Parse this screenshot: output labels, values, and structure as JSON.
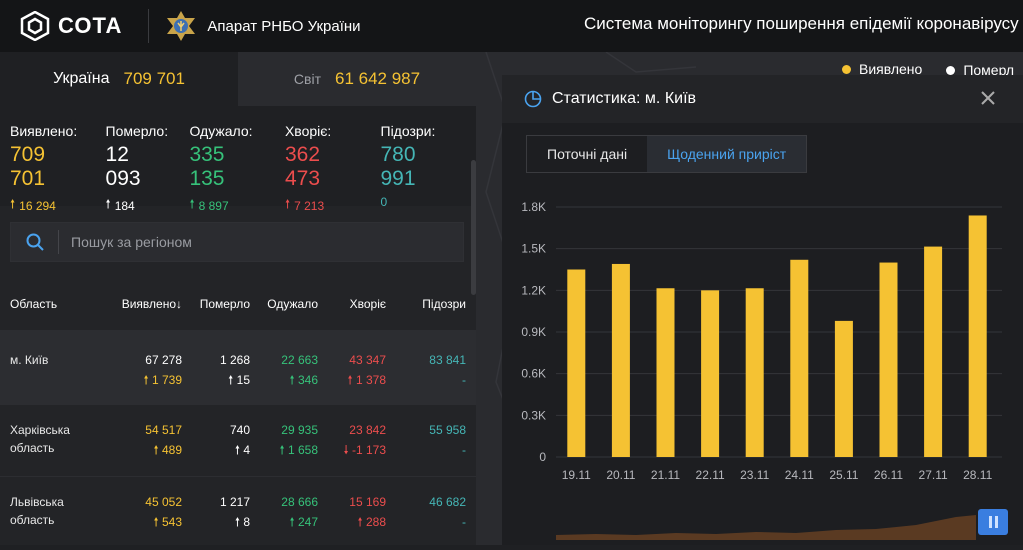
{
  "header": {
    "logo_text": "СОТА",
    "org_label": "Апарат РНБО України",
    "system_title": "Система моніторингу поширення епідемії коронавірусу"
  },
  "tabs": [
    {
      "label": "Україна",
      "value": "709 701"
    },
    {
      "label": "Світ",
      "value": "61 642 987"
    }
  ],
  "stats": [
    {
      "label": "Виявлено:",
      "value": "709 701",
      "delta": "16 294",
      "color": "yellow",
      "arrow": "up"
    },
    {
      "label": "Померло:",
      "value": "12 093",
      "delta": "184",
      "color": "white",
      "arrow": "up"
    },
    {
      "label": "Одужало:",
      "value": "335 135",
      "delta": "8 897",
      "color": "green",
      "arrow": "up"
    },
    {
      "label": "Хворіє:",
      "value": "362 473",
      "delta": "7 213",
      "color": "red",
      "arrow": "up"
    },
    {
      "label": "Підозри:",
      "value": "780 991",
      "delta": "0",
      "color": "teal",
      "arrow": "none"
    }
  ],
  "search": {
    "placeholder": "Пошук за регіоном"
  },
  "table": {
    "headers": [
      "Область",
      "Виявлено",
      "Померло",
      "Одужало",
      "Хворіє",
      "Підозри"
    ],
    "rows": [
      {
        "name": "м. Київ",
        "cases": "67 278",
        "cases_d": "1 739",
        "deaths": "1 268",
        "deaths_d": "15",
        "recovered": "22 663",
        "recovered_d": "346",
        "sick": "43 347",
        "sick_d": "1 378",
        "sick_arrow": "up",
        "susp": "83 841",
        "susp_d": "-"
      },
      {
        "name": "Харківська область",
        "cases": "54 517",
        "cases_d": "489",
        "deaths": "740",
        "deaths_d": "4",
        "recovered": "29 935",
        "recovered_d": "1 658",
        "sick": "23 842",
        "sick_d": "-1 173",
        "sick_arrow": "down",
        "susp": "55 958",
        "susp_d": "-"
      },
      {
        "name": "Львівська область",
        "cases": "45 052",
        "cases_d": "543",
        "deaths": "1 217",
        "deaths_d": "8",
        "recovered": "28 666",
        "recovered_d": "247",
        "sick": "15 169",
        "sick_d": "288",
        "sick_arrow": "up",
        "susp": "46 682",
        "susp_d": "-"
      }
    ]
  },
  "legend": [
    {
      "label": "Виявлено",
      "color": "#f5c233"
    },
    {
      "label": "Померл",
      "color": "#ffffff"
    }
  ],
  "modal": {
    "title": "Статистика: м. Київ",
    "tab_current": "Поточні дані",
    "tab_daily": "Щоденний приріст"
  },
  "colors": {
    "accent": "#f5c233",
    "blue": "#4aa3ef",
    "green": "#36c27a",
    "red": "#ec4d4d",
    "teal": "#45b6b6"
  },
  "chart_data": {
    "type": "bar",
    "categories": [
      "19.11",
      "20.11",
      "21.11",
      "22.11",
      "23.11",
      "24.11",
      "25.11",
      "26.11",
      "27.11",
      "28.11"
    ],
    "values": [
      1350,
      1390,
      1215,
      1200,
      1215,
      1420,
      980,
      1400,
      1515,
      1739
    ],
    "ylim": [
      0,
      1800
    ],
    "yticks": [
      0,
      300,
      600,
      900,
      1200,
      1500,
      1800
    ],
    "ytick_labels": [
      "0",
      "0.3K",
      "0.6K",
      "0.9K",
      "1.2K",
      "1.5K",
      "1.8K"
    ],
    "color": "#f5c233",
    "grid": true
  }
}
